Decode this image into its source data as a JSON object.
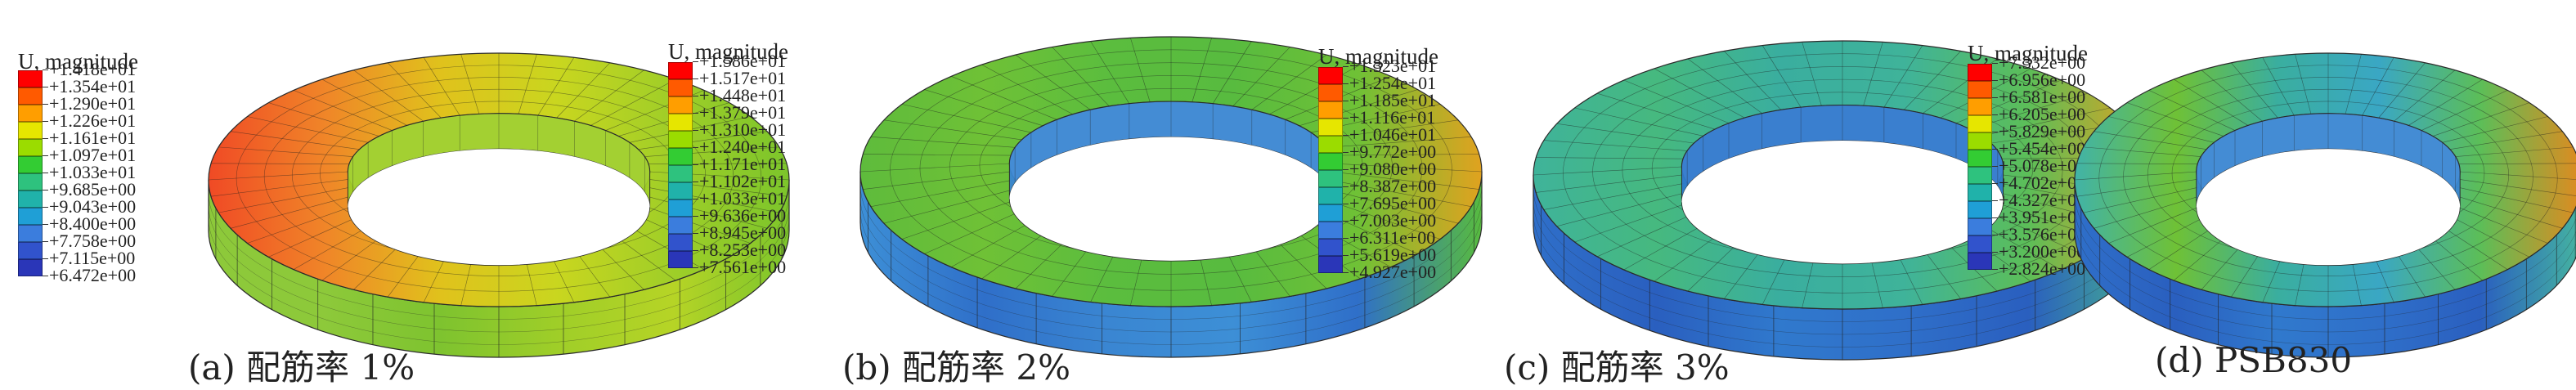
{
  "figure": {
    "panels": [
      {
        "id": "a",
        "legend_title": "U, magnitude",
        "caption": "(a) 配筋率 1%",
        "labels": [
          "+1.418e+01",
          "+1.354e+01",
          "+1.290e+01",
          "+1.226e+01",
          "+1.161e+01",
          "+1.097e+01",
          "+1.033e+01",
          "+9.685e+00",
          "+9.043e+00",
          "+8.400e+00",
          "+7.758e+00",
          "+7.115e+00",
          "+6.472e+00"
        ],
        "colors": {
          "band_top": [
            "#f04a25",
            "#f08528",
            "#e0c21c",
            "#c9d61f",
            "#9fce28",
            "#7cc52b"
          ],
          "band_side": [
            "#8dc93a",
            "#8dc93a",
            "#7ec32f",
            "#9fce28",
            "#b6d426",
            "#7cc52b"
          ],
          "inner": "#9fce28"
        }
      },
      {
        "id": "b",
        "legend_title": "U, magnitude",
        "caption": "(b) 配筋率 2%",
        "labels": [
          "+1.586e+01",
          "+1.517e+01",
          "+1.448e+01",
          "+1.379e+01",
          "+1.310e+01",
          "+1.240e+01",
          "+1.171e+01",
          "+1.102e+01",
          "+1.033e+01",
          "+9.636e+00",
          "+8.945e+00",
          "+8.253e+00",
          "+7.561e+00"
        ],
        "colors": {
          "band_top": [
            "#5ebb3c",
            "#6fc136",
            "#5bbd3e",
            "#58bb3f",
            "#6fc136",
            "#e0a21f"
          ],
          "band_side": [
            "#3d8fd6",
            "#2f6fc9",
            "#3a86d2",
            "#3d8fd6",
            "#2f6fc9",
            "#58bb3f"
          ],
          "inner": "#3a86d2"
        }
      },
      {
        "id": "c",
        "legend_title": "U, magnitude",
        "caption": "(c) 配筋率 3%",
        "labels": [
          "+1.323e+01",
          "+1.254e+01",
          "+1.185e+01",
          "+1.116e+01",
          "+1.046e+01",
          "+9.772e+00",
          "+9.080e+00",
          "+8.387e+00",
          "+7.695e+00",
          "+7.003e+00",
          "+6.311e+00",
          "+5.619e+00",
          "+4.927e+00"
        ],
        "colors": {
          "band_top": [
            "#3fb39a",
            "#46b97f",
            "#3aae9f",
            "#3fb39a",
            "#5cbe58",
            "#e0a21f"
          ],
          "band_side": [
            "#2f6fc9",
            "#2a5fbf",
            "#3079cd",
            "#2f6fc9",
            "#2a5fbf",
            "#48b48c"
          ],
          "inner": "#3079cd"
        }
      },
      {
        "id": "d",
        "legend_title": "U, magnitude",
        "caption": "(d) PSB830",
        "labels": [
          "+7.332e+00",
          "+6.956e+00",
          "+6.581e+00",
          "+6.205e+00",
          "+5.829e+00",
          "+5.454e+00",
          "+5.078e+00",
          "+4.702e+00",
          "+4.327e+00",
          "+3.951e+00",
          "+3.576e+00",
          "+3.200e+00",
          "+2.824e+00"
        ],
        "colors": {
          "band_top": [
            "#41b3a8",
            "#6fc136",
            "#3aae9f",
            "#3aa7c4",
            "#5cbe58",
            "#e08a1f"
          ],
          "band_side": [
            "#2f6fc9",
            "#2a5fbf",
            "#3079cd",
            "#2f6fc9",
            "#2a5fbf",
            "#45b5a0"
          ],
          "inner": "#3a86d2"
        }
      }
    ],
    "legend_swatches": [
      "#ff0000",
      "#ff5a00",
      "#ff9e00",
      "#e6e600",
      "#9bdc00",
      "#33cc33",
      "#2ec27e",
      "#20b2aa",
      "#1f9fd6",
      "#3b7ddd",
      "#3153cc",
      "#2a36b8"
    ]
  }
}
